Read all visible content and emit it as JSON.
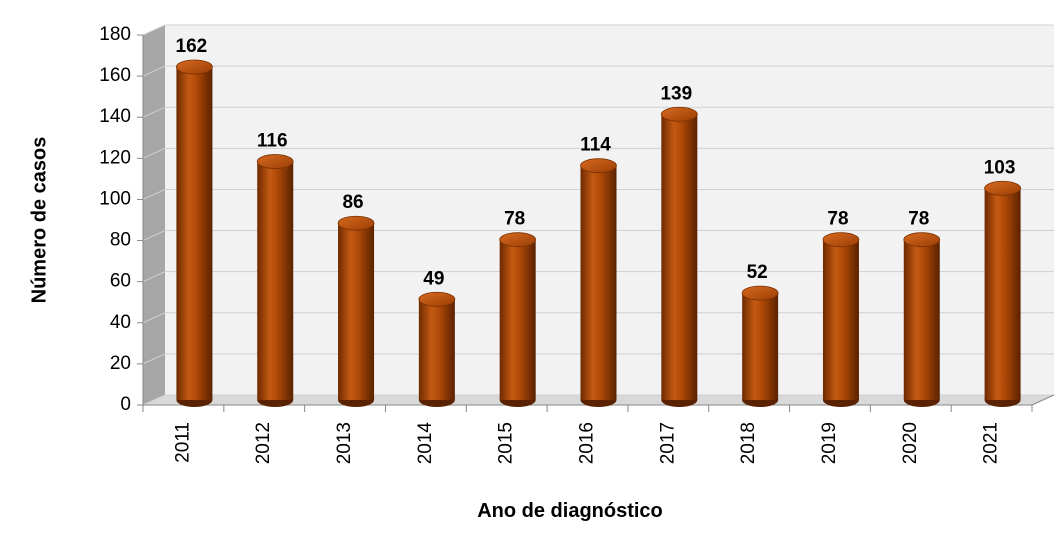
{
  "chart_data": {
    "type": "bar",
    "style": "3d-cylinder",
    "x_label": "Ano de diagnóstico",
    "y_label": "Número de casos",
    "categories": [
      "2011",
      "2012",
      "2013",
      "2014",
      "2015",
      "2016",
      "2017",
      "2018",
      "2019",
      "2020",
      "2021"
    ],
    "values": [
      162,
      116,
      86,
      49,
      78,
      114,
      139,
      52,
      78,
      78,
      103
    ],
    "color": "#b04a08",
    "ylim": [
      0,
      180
    ],
    "yticks": [
      0,
      20,
      40,
      60,
      80,
      100,
      120,
      140,
      160,
      180
    ],
    "grid": true
  }
}
